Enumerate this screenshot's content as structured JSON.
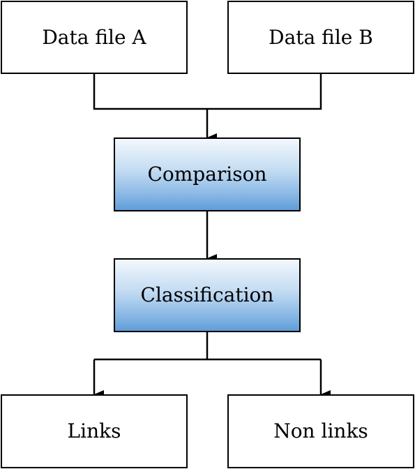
{
  "diagram": {
    "type": "flowchart",
    "nodes": {
      "data_file_a": "Data file A",
      "data_file_b": "Data file B",
      "comparison": "Comparison",
      "classification": "Classification",
      "links": "Links",
      "non_links": "Non links"
    },
    "edges": [
      {
        "from": "Data file A",
        "to": "Comparison"
      },
      {
        "from": "Data file B",
        "to": "Comparison"
      },
      {
        "from": "Comparison",
        "to": "Classification"
      },
      {
        "from": "Classification",
        "to": "Links"
      },
      {
        "from": "Classification",
        "to": "Non links"
      }
    ]
  }
}
